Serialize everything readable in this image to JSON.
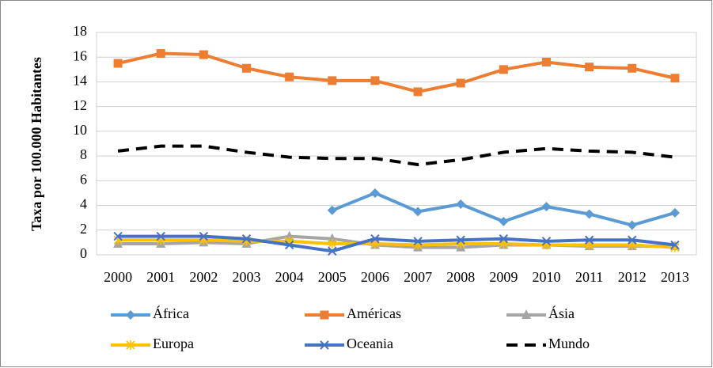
{
  "chart_data": {
    "type": "line",
    "ylabel": "Taxa por 100.000 Habitantes",
    "categories": [
      "2000",
      "2001",
      "2002",
      "2003",
      "2004",
      "2005",
      "2006",
      "2007",
      "2008",
      "2009",
      "2010",
      "2011",
      "2012",
      "2013"
    ],
    "ylim": [
      0,
      18
    ],
    "yticks": [
      0,
      2,
      4,
      6,
      8,
      10,
      12,
      14,
      16,
      18
    ],
    "grid": true,
    "legend": "bottom",
    "series": [
      {
        "name": "África",
        "color": "#5b9bd5",
        "marker": "diamond",
        "values": [
          null,
          null,
          null,
          null,
          null,
          3.6,
          5.0,
          3.5,
          4.1,
          2.7,
          3.9,
          3.3,
          2.4,
          3.4
        ]
      },
      {
        "name": "Américas",
        "color": "#ed7d31",
        "marker": "square",
        "values": [
          15.5,
          16.3,
          16.2,
          15.1,
          14.4,
          14.1,
          14.1,
          13.2,
          13.9,
          15.0,
          15.6,
          15.2,
          15.1,
          14.3
        ]
      },
      {
        "name": "Ásia",
        "color": "#a5a5a5",
        "marker": "triangle",
        "values": [
          0.9,
          0.9,
          1.0,
          0.9,
          1.5,
          1.3,
          0.8,
          0.6,
          0.6,
          0.8,
          0.8,
          0.7,
          0.7,
          0.7
        ]
      },
      {
        "name": "Europa",
        "color": "#ffc000",
        "marker": "star",
        "values": [
          1.2,
          1.2,
          1.2,
          1.1,
          1.1,
          0.9,
          0.9,
          0.8,
          0.9,
          0.9,
          0.8,
          0.8,
          0.8,
          0.6
        ]
      },
      {
        "name": "Oceania",
        "color": "#4472c4",
        "marker": "x",
        "values": [
          1.5,
          1.5,
          1.5,
          1.3,
          0.8,
          0.3,
          1.3,
          1.1,
          1.2,
          1.3,
          1.1,
          1.2,
          1.2,
          0.8
        ]
      },
      {
        "name": "Mundo",
        "color": "#000000",
        "marker": "none",
        "dashed": true,
        "values": [
          8.4,
          8.8,
          8.8,
          8.3,
          7.9,
          7.8,
          7.8,
          7.3,
          7.7,
          8.3,
          8.6,
          8.4,
          8.3,
          7.9
        ]
      }
    ]
  }
}
